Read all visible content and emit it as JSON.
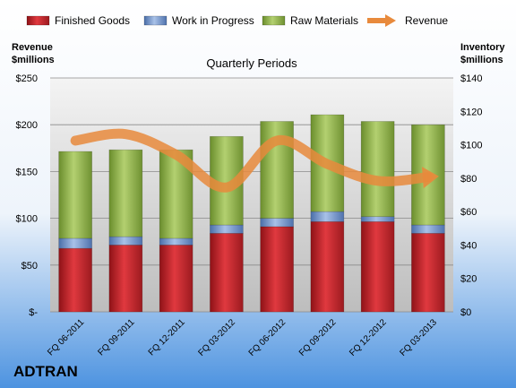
{
  "chart_data": {
    "type": "bar",
    "stacked": true,
    "title": "Quarterly Periods",
    "company": "ADTRAN",
    "categories": [
      "FQ 06-2011",
      "FQ 09-2011",
      "FQ 12-2011",
      "FQ 03-2012",
      "FQ 06-2012",
      "FQ 09-2012",
      "FQ 12-2012",
      "FQ 03-2013"
    ],
    "left_axis": {
      "label_line1": "Revenue",
      "label_line2": "$millions",
      "ylim": [
        0,
        250
      ],
      "ticks": [
        0,
        50,
        100,
        150,
        200,
        250
      ],
      "tick_labels": [
        "$-",
        "$50",
        "$100",
        "$150",
        "$200",
        "$250"
      ]
    },
    "right_axis": {
      "label_line1": "Inventory",
      "label_line2": "$millions",
      "ylim": [
        0,
        140
      ],
      "ticks": [
        0,
        20,
        40,
        60,
        80,
        100,
        120,
        140
      ],
      "tick_labels": [
        "$0",
        "$20",
        "$40",
        "$60",
        "$80",
        "$100",
        "$120",
        "$140"
      ]
    },
    "series": [
      {
        "name": "Finished Goods",
        "axis": "right",
        "kind": "bar",
        "color": "#c0262d",
        "values": [
          38,
          40,
          40,
          47,
          51,
          54,
          54,
          47
        ]
      },
      {
        "name": "Work in Progress",
        "axis": "right",
        "kind": "bar",
        "color": "#6f8fc4",
        "values": [
          6,
          5,
          4,
          5,
          5,
          6,
          3,
          5
        ]
      },
      {
        "name": "Raw Materials",
        "axis": "right",
        "kind": "bar",
        "color": "#8fb04a",
        "values": [
          52,
          52,
          53,
          53,
          58,
          58,
          57,
          60
        ]
      },
      {
        "name": "Revenue",
        "axis": "left",
        "kind": "line",
        "color": "#e88a3c",
        "values": [
          183,
          190,
          168,
          133,
          183,
          158,
          140,
          144
        ]
      }
    ],
    "legend_position": "top",
    "grid": true
  }
}
